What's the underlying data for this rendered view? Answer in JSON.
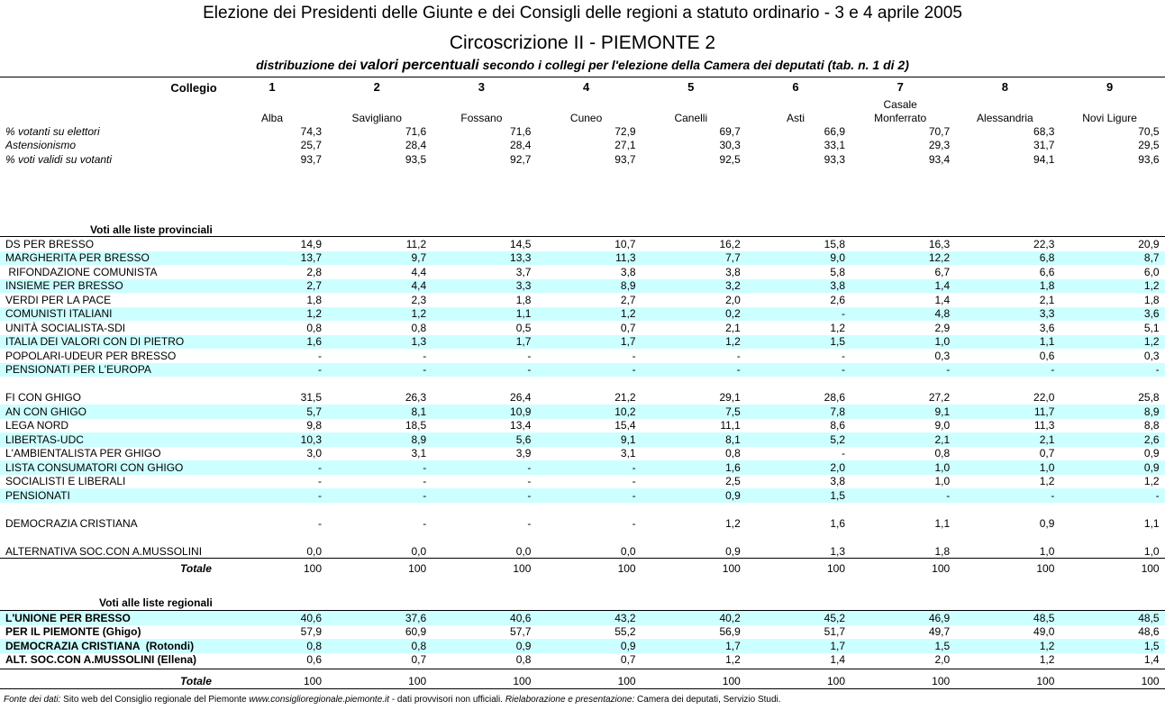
{
  "header": {
    "title": "Elezione dei Presidenti delle Giunte e dei Consigli delle regioni a statuto ordinario - 3 e 4 aprile 2005",
    "subtitle": "Circoscrizione II - PIEMONTE 2",
    "description": [
      "distribuzione dei ",
      "valori percentuali",
      " secondo i collegi per l'elezione della Camera dei deputati (tab. n. 1 di 2)"
    ]
  },
  "table": {
    "collegio_label": "Collegio",
    "columns": [
      {
        "number": "1",
        "name": "Alba"
      },
      {
        "number": "2",
        "name": "Savigliano"
      },
      {
        "number": "3",
        "name": "Fossano"
      },
      {
        "number": "4",
        "name": "Cuneo"
      },
      {
        "number": "5",
        "name": "Canelli"
      },
      {
        "number": "6",
        "name": "Asti"
      },
      {
        "number": "7",
        "name": "Casale\nMonferrato"
      },
      {
        "number": "8",
        "name": "Alessandria"
      },
      {
        "number": "9",
        "name": "Novi Ligure"
      }
    ],
    "stats": [
      {
        "label": "% votanti su elettori",
        "values": [
          "74,3",
          "71,6",
          "71,6",
          "72,9",
          "69,7",
          "66,9",
          "70,7",
          "68,3",
          "70,5"
        ]
      },
      {
        "label": "Astensionismo",
        "values": [
          "25,7",
          "28,4",
          "28,4",
          "27,1",
          "30,3",
          "33,1",
          "29,3",
          "31,7",
          "29,5"
        ]
      },
      {
        "label": "% voti validi su votanti",
        "values": [
          "93,7",
          "93,5",
          "92,7",
          "93,7",
          "92,5",
          "93,3",
          "93,4",
          "94,1",
          "93,6"
        ]
      }
    ],
    "provincial": {
      "title": "Voti alle liste provinciali",
      "groups": [
        [
          {
            "label": "DS PER BRESSO",
            "values": [
              "14,9",
              "11,2",
              "14,5",
              "10,7",
              "16,2",
              "15,8",
              "16,3",
              "22,3",
              "20,9"
            ]
          },
          {
            "label": "MARGHERITA PER BRESSO",
            "values": [
              "13,7",
              "9,7",
              "13,3",
              "11,3",
              "7,7",
              "9,0",
              "12,2",
              "6,8",
              "8,7"
            ]
          },
          {
            "label": " RIFONDAZIONE COMUNISTA",
            "values": [
              "2,8",
              "4,4",
              "3,7",
              "3,8",
              "3,8",
              "5,8",
              "6,7",
              "6,6",
              "6,0"
            ]
          },
          {
            "label": "INSIEME PER BRESSO",
            "values": [
              "2,7",
              "4,4",
              "3,3",
              "8,9",
              "3,2",
              "3,8",
              "1,4",
              "1,8",
              "1,2"
            ]
          },
          {
            "label": "VERDI PER LA PACE",
            "values": [
              "1,8",
              "2,3",
              "1,8",
              "2,7",
              "2,0",
              "2,6",
              "1,4",
              "2,1",
              "1,8"
            ]
          },
          {
            "label": "COMUNISTI ITALIANI",
            "values": [
              "1,2",
              "1,2",
              "1,1",
              "1,2",
              "0,2",
              "-",
              "4,8",
              "3,3",
              "3,6"
            ]
          },
          {
            "label": "UNITÀ SOCIALISTA-SDI",
            "values": [
              "0,8",
              "0,8",
              "0,5",
              "0,7",
              "2,1",
              "1,2",
              "2,9",
              "3,6",
              "5,1"
            ]
          },
          {
            "label": "ITALIA DEI VALORI CON DI PIETRO",
            "values": [
              "1,6",
              "1,3",
              "1,7",
              "1,7",
              "1,2",
              "1,5",
              "1,0",
              "1,1",
              "1,2"
            ]
          },
          {
            "label": "POPOLARI-UDEUR PER BRESSO",
            "values": [
              "-",
              "-",
              "-",
              "-",
              "-",
              "-",
              "0,3",
              "0,6",
              "0,3"
            ]
          },
          {
            "label": "PENSIONATI PER L'EUROPA",
            "values": [
              "-",
              "-",
              "-",
              "-",
              "-",
              "-",
              "-",
              "-",
              "-"
            ]
          }
        ],
        [
          {
            "label": "FI CON GHIGO",
            "values": [
              "31,5",
              "26,3",
              "26,4",
              "21,2",
              "29,1",
              "28,6",
              "27,2",
              "22,0",
              "25,8"
            ]
          },
          {
            "label": "AN CON GHIGO",
            "values": [
              "5,7",
              "8,1",
              "10,9",
              "10,2",
              "7,5",
              "7,8",
              "9,1",
              "11,7",
              "8,9"
            ]
          },
          {
            "label": "LEGA NORD",
            "values": [
              "9,8",
              "18,5",
              "13,4",
              "15,4",
              "11,1",
              "8,6",
              "9,0",
              "11,3",
              "8,8"
            ]
          },
          {
            "label": "LIBERTAS-UDC",
            "values": [
              "10,3",
              "8,9",
              "5,6",
              "9,1",
              "8,1",
              "5,2",
              "2,1",
              "2,1",
              "2,6"
            ]
          },
          {
            "label": "L'AMBIENTALISTA PER GHIGO",
            "values": [
              "3,0",
              "3,1",
              "3,9",
              "3,1",
              "0,8",
              "-",
              "0,8",
              "0,7",
              "0,9"
            ]
          },
          {
            "label": "LISTA CONSUMATORI CON GHIGO",
            "values": [
              "-",
              "-",
              "-",
              "-",
              "1,6",
              "2,0",
              "1,0",
              "1,0",
              "0,9"
            ]
          },
          {
            "label": "SOCIALISTI E LIBERALI",
            "values": [
              "-",
              "-",
              "-",
              "-",
              "2,5",
              "3,8",
              "1,0",
              "1,2",
              "1,2"
            ]
          },
          {
            "label": "PENSIONATI",
            "values": [
              "-",
              "-",
              "-",
              "-",
              "0,9",
              "1,5",
              "-",
              "-",
              "-"
            ]
          }
        ],
        [
          {
            "label": "DEMOCRAZIA CRISTIANA",
            "values": [
              "-",
              "-",
              "-",
              "-",
              "1,2",
              "1,6",
              "1,1",
              "0,9",
              "1,1"
            ]
          }
        ],
        [
          {
            "label": "ALTERNATIVA SOC.CON A.MUSSOLINI",
            "values": [
              "0,0",
              "0,0",
              "0,0",
              "0,0",
              "0,9",
              "1,3",
              "1,8",
              "1,0",
              "1,0"
            ]
          }
        ]
      ],
      "total": {
        "label": "Totale",
        "values": [
          "100",
          "100",
          "100",
          "100",
          "100",
          "100",
          "100",
          "100",
          "100"
        ]
      }
    },
    "regional": {
      "title": "Voti alle liste regionali",
      "rows": [
        {
          "label": "L'UNIONE PER BRESSO",
          "values": [
            "40,6",
            "37,6",
            "40,6",
            "43,2",
            "40,2",
            "45,2",
            "46,9",
            "48,5",
            "48,5"
          ]
        },
        {
          "label": "PER IL PIEMONTE (Ghigo)",
          "values": [
            "57,9",
            "60,9",
            "57,7",
            "55,2",
            "56,9",
            "51,7",
            "49,7",
            "49,0",
            "48,6"
          ]
        },
        {
          "label": "DEMOCRAZIA CRISTIANA  (Rotondi)",
          "values": [
            "0,8",
            "0,8",
            "0,9",
            "0,9",
            "1,7",
            "1,7",
            "1,5",
            "1,2",
            "1,5"
          ]
        },
        {
          "label": "ALT. SOC.CON A.MUSSOLINI (Ellena)",
          "values": [
            "0,6",
            "0,7",
            "0,8",
            "0,7",
            "1,2",
            "1,4",
            "2,0",
            "1,2",
            "1,4"
          ]
        }
      ],
      "total": {
        "label": "Totale",
        "values": [
          "100",
          "100",
          "100",
          "100",
          "100",
          "100",
          "100",
          "100",
          "100"
        ]
      }
    }
  },
  "footer": [
    "Fonte dei dati:",
    "Sito web del Consiglio regionale del Piemonte",
    "www.consiglioregionale.piemonte.it",
    "- dati provvisori non ufficiali.",
    "Rielaborazione e presentazione:",
    "Camera dei deputati, Servizio Studi."
  ]
}
